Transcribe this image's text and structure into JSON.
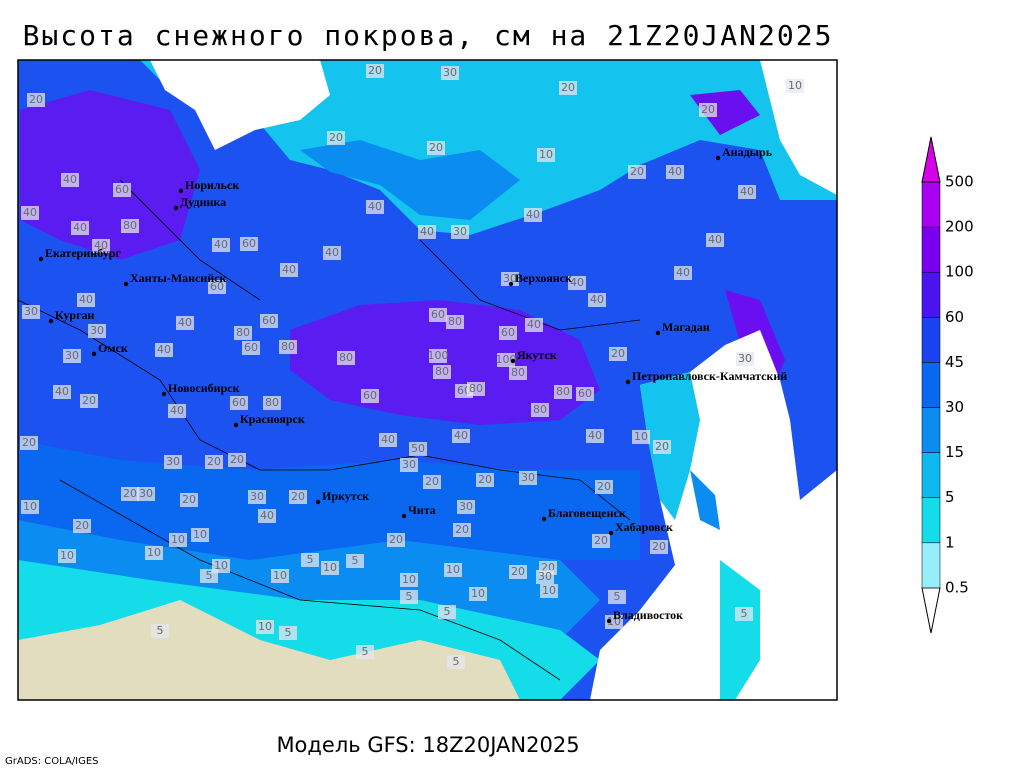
{
  "title": "Высота снежного покрова, см на 21Z20JAN2025",
  "subtitle": "Модель GFS: 18Z20JAN2025",
  "credit": "GrADS: COLA/IGES",
  "colorbar": {
    "levels": [
      0.5,
      1,
      5,
      15,
      30,
      45,
      60,
      100,
      200,
      500
    ],
    "colors": [
      "#ffffff",
      "#96eefa",
      "#14dce8",
      "#10b8f0",
      "#0a8cf0",
      "#0a68f0",
      "#1a44f0",
      "#4a14f0",
      "#7a00f0",
      "#a800f0",
      "#d800e8"
    ]
  },
  "cities": [
    "Анадырь",
    "Норильск",
    "Дудинка",
    "Екатеринбург",
    "Ханты-Мансийск",
    "Верхоянск",
    "Курган",
    "Магадан",
    "Омск",
    "Якутск",
    "Петропавловск-Камчатский",
    "Новосибирск",
    "Красноярск",
    "Иркутск",
    "Чита",
    "Благовещенск",
    "Хабаровск",
    "Владивосток"
  ],
  "contour_labels": [
    20,
    30,
    20,
    10,
    20,
    20,
    20,
    10,
    20,
    20,
    40,
    40,
    40,
    60,
    40,
    80,
    40,
    40,
    40,
    30,
    40,
    40,
    40,
    60,
    40,
    40,
    40,
    40,
    30,
    40,
    40,
    40,
    30,
    60,
    40,
    80,
    60,
    60,
    80,
    60,
    40,
    30,
    30,
    40,
    80,
    60,
    80,
    100,
    80,
    100,
    80,
    20,
    30,
    40,
    20,
    40,
    60,
    80,
    60,
    60,
    80,
    80,
    60,
    80,
    20,
    40,
    40,
    40,
    10,
    20,
    30,
    20,
    20,
    30,
    50,
    20,
    20,
    30,
    20,
    20,
    30,
    30,
    20,
    20,
    10,
    30,
    40,
    20,
    20,
    20,
    20,
    20,
    10,
    10,
    10,
    10,
    10,
    5,
    10,
    5,
    10,
    5,
    10,
    10,
    20,
    20,
    10,
    30,
    10,
    5,
    5,
    5,
    10,
    5,
    5,
    10,
    5,
    5,
    5
  ]
}
